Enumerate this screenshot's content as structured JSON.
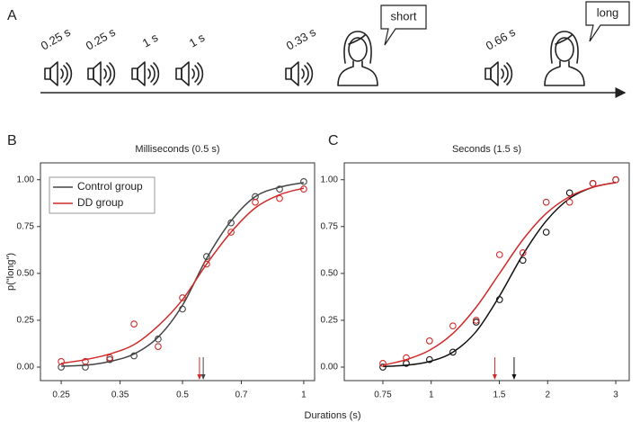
{
  "panel_a": {
    "label": "A",
    "sounds": [
      "0.25 s",
      "0.25 s",
      "1 s",
      "1 s",
      "0.33 s",
      "0.66 s"
    ],
    "responses": [
      "short",
      "long"
    ]
  },
  "xlabel": "Durations (s)",
  "chart_data": [
    {
      "type": "scatter",
      "panel": "B",
      "title": "Milliseconds (0.5 s)",
      "ylabel": "p(\"long\")",
      "x": [
        0.25,
        0.287,
        0.33,
        0.379,
        0.435,
        0.5,
        0.574,
        0.66,
        0.758,
        0.871,
        1
      ],
      "xlim": [
        0.222,
        1.064
      ],
      "xticks": [
        0.25,
        0.35,
        0.5,
        0.7,
        1
      ],
      "xscale": "log",
      "ylim": [
        -0.072,
        1.09
      ],
      "yticks": [
        {
          "value": 0,
          "label": "0.00"
        },
        {
          "value": 0.25,
          "label": "0.25"
        },
        {
          "value": 0.5,
          "label": "0.50"
        },
        {
          "value": 0.75,
          "label": "0.75"
        },
        {
          "value": 1,
          "label": "1.00"
        }
      ],
      "legend": "upper left",
      "series": [
        {
          "name": "Control group",
          "color": "#444444",
          "values": [
            0.0,
            0.0,
            0.04,
            0.06,
            0.15,
            0.31,
            0.59,
            0.77,
            0.91,
            0.95,
            0.99
          ],
          "fit": [
            0.005,
            0.01,
            0.03,
            0.07,
            0.16,
            0.33,
            0.58,
            0.78,
            0.91,
            0.96,
            0.985
          ],
          "pse": 0.563
        },
        {
          "name": "DD group",
          "color": "#d02a2a",
          "values": [
            0.03,
            0.03,
            0.05,
            0.23,
            0.11,
            0.37,
            0.55,
            0.72,
            0.88,
            0.9,
            0.95
          ],
          "fit": [
            0.02,
            0.04,
            0.07,
            0.12,
            0.22,
            0.36,
            0.55,
            0.72,
            0.85,
            0.92,
            0.955
          ],
          "pse": 0.551
        }
      ]
    },
    {
      "type": "scatter",
      "panel": "C",
      "title": "Seconds (1.5 s)",
      "x": [
        0.75,
        0.862,
        0.99,
        1.138,
        1.307,
        1.502,
        1.726,
        1.983,
        2.279,
        2.618,
        3
      ],
      "xlim": [
        0.596,
        3.25
      ],
      "xticks": [
        0.75,
        1,
        1.5,
        2,
        3
      ],
      "xscale": "log",
      "ylim": [
        -0.072,
        1.09
      ],
      "yticks": [
        {
          "value": 0,
          "label": "0.00"
        },
        {
          "value": 0.25,
          "label": "0.25"
        },
        {
          "value": 0.5,
          "label": "0.50"
        },
        {
          "value": 0.75,
          "label": "0.75"
        },
        {
          "value": 1,
          "label": "1.00"
        }
      ],
      "series": [
        {
          "color": "#111111",
          "values": [
            0.0,
            0.02,
            0.04,
            0.08,
            0.24,
            0.36,
            0.57,
            0.72,
            0.93,
            0.98,
            1.0
          ],
          "fit": [
            0.003,
            0.01,
            0.03,
            0.08,
            0.19,
            0.38,
            0.6,
            0.78,
            0.9,
            0.96,
            0.985
          ],
          "pse": 1.638
        },
        {
          "color": "#d02a2a",
          "values": [
            0.02,
            0.05,
            0.14,
            0.22,
            0.25,
            0.6,
            0.61,
            0.88,
            0.88,
            0.98,
            1.0
          ],
          "fit": [
            0.01,
            0.04,
            0.09,
            0.18,
            0.32,
            0.5,
            0.68,
            0.82,
            0.91,
            0.96,
            0.985
          ],
          "pse": 1.46
        }
      ]
    }
  ]
}
